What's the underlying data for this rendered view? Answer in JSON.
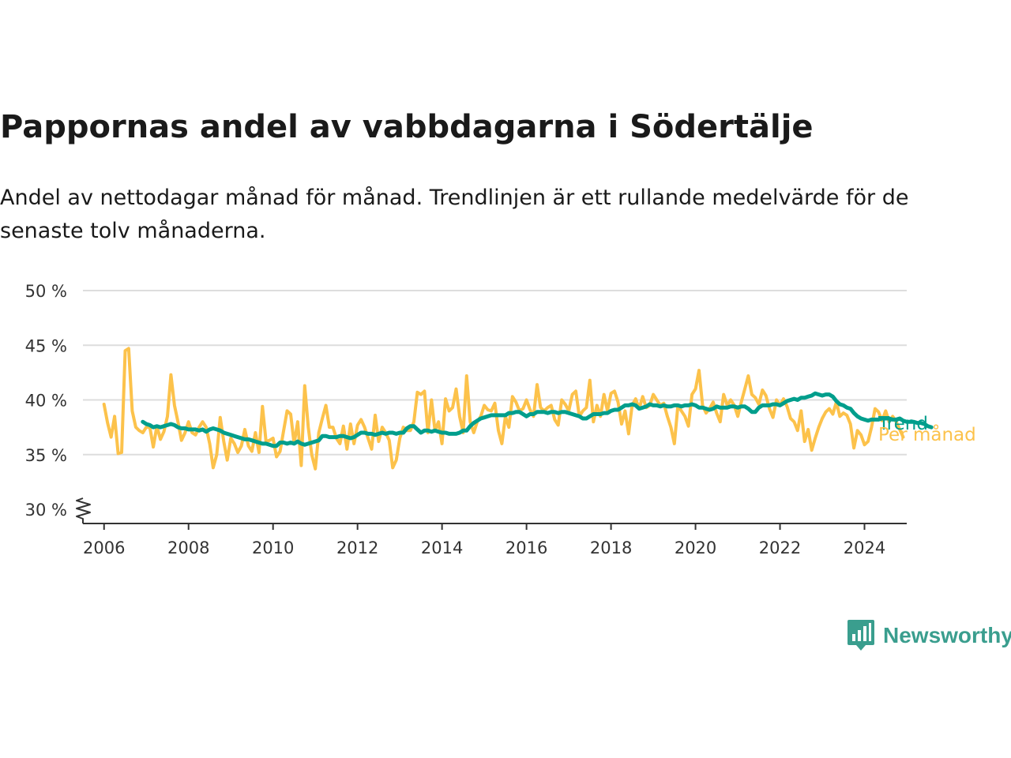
{
  "title": "Pappornas andel av vabbdagarna i Södertälje",
  "subtitle": "Andel av nettodagar månad för månad. Trendlinjen är ett rullande medelvärde för de senaste tolv månaderna.",
  "brand": {
    "name": "Newsworthy",
    "color": "#3a9e8e",
    "icon": "newsworthy-logo-icon"
  },
  "colors": {
    "trend": "#009e8c",
    "monthly": "#fcc24b",
    "grid": "#dddddd",
    "axis": "#333333"
  },
  "chart_data": {
    "type": "line",
    "title": "Pappornas andel av vabbdagarna i Södertälje",
    "xlabel": "",
    "ylabel": "",
    "ylim": [
      30,
      50
    ],
    "xlim": [
      "2005-06",
      "2025-01"
    ],
    "axis_break": true,
    "y_ticks": [
      {
        "value": 30,
        "label": "30 %"
      },
      {
        "value": 35,
        "label": "35 %"
      },
      {
        "value": 40,
        "label": "40 %"
      },
      {
        "value": 45,
        "label": "45 %"
      },
      {
        "value": 50,
        "label": "50 %"
      }
    ],
    "x_ticks": [
      {
        "value": 2006,
        "label": "2006"
      },
      {
        "value": 2008,
        "label": "2008"
      },
      {
        "value": 2010,
        "label": "2010"
      },
      {
        "value": 2012,
        "label": "2012"
      },
      {
        "value": 2014,
        "label": "2014"
      },
      {
        "value": 2016,
        "label": "2016"
      },
      {
        "value": 2018,
        "label": "2018"
      },
      {
        "value": 2020,
        "label": "2020"
      },
      {
        "value": 2022,
        "label": "2022"
      },
      {
        "value": 2024,
        "label": "2024"
      }
    ],
    "grid": "horizontal",
    "legend_placement": "end-of-line labels, right",
    "series": [
      {
        "name": "Per månad",
        "color": "#fcc24b",
        "start": "2006-01",
        "values": [
          39.6,
          37.9,
          36.6,
          38.5,
          35.1,
          35.2,
          44.5,
          44.7,
          39.0,
          37.5,
          37.2,
          37.0,
          37.5,
          37.5,
          35.7,
          37.6,
          36.4,
          37.1,
          38.5,
          42.3,
          39.5,
          38.0,
          36.3,
          37.0,
          38.0,
          37.0,
          36.8,
          37.5,
          38.0,
          37.5,
          36.0,
          33.8,
          35.0,
          38.4,
          36.2,
          34.5,
          36.5,
          36.0,
          35.2,
          35.8,
          37.3,
          35.8,
          35.3,
          37.0,
          35.2,
          39.4,
          36.2,
          36.3,
          36.5,
          34.8,
          35.3,
          37.2,
          39.0,
          38.7,
          36.0,
          38.0,
          34.0,
          41.3,
          37.5,
          35.0,
          33.7,
          37.0,
          38.3,
          39.5,
          37.5,
          37.5,
          36.5,
          36.0,
          37.6,
          35.5,
          37.8,
          36.0,
          37.7,
          38.2,
          37.5,
          36.5,
          35.5,
          38.6,
          36.2,
          37.5,
          37.0,
          36.3,
          33.8,
          34.5,
          36.5,
          37.5,
          37.2,
          37.2,
          38.0,
          40.7,
          40.5,
          40.8,
          37.0,
          40.0,
          37.2,
          38.0,
          36.0,
          40.1,
          39.0,
          39.3,
          41.0,
          38.5,
          37.0,
          42.2,
          38.0,
          37.0,
          38.0,
          38.5,
          39.5,
          39.1,
          39.0,
          39.7,
          37.2,
          36.0,
          38.5,
          37.5,
          40.3,
          39.8,
          39.0,
          39.2,
          40.0,
          39.1,
          38.5,
          41.4,
          39.3,
          39.0,
          39.3,
          39.5,
          38.2,
          37.7,
          40.0,
          39.6,
          39.0,
          40.5,
          40.8,
          38.5,
          39.0,
          39.3,
          41.8,
          38.0,
          39.5,
          38.5,
          40.5,
          39.0,
          40.6,
          40.8,
          39.8,
          37.8,
          39.0,
          36.9,
          39.5,
          40.1,
          39.2,
          40.3,
          39.3,
          39.5,
          40.5,
          40.0,
          39.5,
          39.7,
          38.5,
          37.5,
          36.0,
          39.5,
          39.0,
          38.5,
          37.6,
          40.5,
          41.0,
          42.7,
          39.5,
          38.8,
          39.2,
          39.8,
          38.8,
          38.0,
          40.5,
          39.5,
          40.0,
          39.5,
          38.5,
          39.8,
          41.0,
          42.2,
          40.5,
          40.2,
          39.6,
          40.9,
          40.4,
          39.2,
          38.4,
          40.0,
          39.5,
          40.1,
          39.4,
          38.3,
          38.0,
          37.2,
          39.0,
          36.2,
          37.3,
          35.4,
          36.5,
          37.5,
          38.3,
          38.9,
          39.2,
          38.7,
          39.8,
          38.5,
          38.8,
          38.6,
          37.8,
          35.6,
          37.2,
          36.8,
          35.9,
          36.2,
          37.5,
          39.2,
          38.9,
          38.1,
          39.0,
          38.0,
          38.5,
          38.0,
          37.3,
          36.6
        ]
      },
      {
        "name": "Trend",
        "color": "#009e8c",
        "start": "2006-12",
        "values": [
          38.0,
          37.8,
          37.7,
          37.5,
          37.6,
          37.5,
          37.6,
          37.7,
          37.8,
          37.7,
          37.5,
          37.4,
          37.4,
          37.3,
          37.3,
          37.3,
          37.2,
          37.3,
          37.1,
          37.3,
          37.4,
          37.3,
          37.2,
          37.0,
          36.9,
          36.8,
          36.7,
          36.6,
          36.5,
          36.4,
          36.4,
          36.3,
          36.2,
          36.1,
          36.0,
          36.0,
          35.9,
          35.8,
          35.8,
          36.1,
          36.1,
          36.0,
          36.1,
          36.0,
          36.2,
          36.0,
          35.9,
          36.0,
          36.1,
          36.2,
          36.3,
          36.7,
          36.7,
          36.6,
          36.6,
          36.6,
          36.7,
          36.7,
          36.6,
          36.5,
          36.6,
          36.8,
          37.0,
          37.0,
          36.9,
          36.9,
          36.8,
          36.9,
          37.0,
          36.9,
          37.0,
          37.0,
          36.9,
          37.0,
          37.0,
          37.4,
          37.6,
          37.6,
          37.3,
          37.0,
          37.2,
          37.2,
          37.1,
          37.2,
          37.1,
          37.0,
          37.0,
          36.9,
          36.9,
          36.9,
          37.0,
          37.2,
          37.2,
          37.6,
          37.9,
          38.1,
          38.3,
          38.4,
          38.5,
          38.6,
          38.6,
          38.6,
          38.6,
          38.6,
          38.8,
          38.8,
          38.9,
          38.9,
          38.7,
          38.5,
          38.7,
          38.7,
          38.9,
          38.9,
          38.9,
          38.8,
          38.9,
          38.9,
          38.8,
          38.9,
          38.9,
          38.8,
          38.7,
          38.6,
          38.5,
          38.3,
          38.3,
          38.5,
          38.7,
          38.7,
          38.7,
          38.8,
          38.8,
          39.0,
          39.1,
          39.1,
          39.3,
          39.5,
          39.5,
          39.6,
          39.5,
          39.2,
          39.3,
          39.4,
          39.6,
          39.5,
          39.5,
          39.4,
          39.5,
          39.4,
          39.4,
          39.5,
          39.5,
          39.4,
          39.5,
          39.5,
          39.6,
          39.5,
          39.3,
          39.3,
          39.2,
          39.1,
          39.2,
          39.4,
          39.3,
          39.3,
          39.3,
          39.4,
          39.4,
          39.3,
          39.4,
          39.4,
          39.2,
          38.9,
          38.9,
          39.3,
          39.5,
          39.5,
          39.5,
          39.6,
          39.6,
          39.5,
          39.7,
          39.9,
          40.0,
          40.1,
          40.0,
          40.2,
          40.2,
          40.3,
          40.4,
          40.6,
          40.5,
          40.4,
          40.5,
          40.5,
          40.3,
          39.9,
          39.6,
          39.5,
          39.3,
          39.2,
          38.8,
          38.5,
          38.3,
          38.2,
          38.1,
          38.2,
          38.2,
          38.2,
          38.3,
          38.3,
          38.3,
          38.2,
          38.2,
          38.3,
          38.1,
          38.0,
          38.0,
          38.0,
          37.9,
          37.9,
          37.8,
          37.6,
          37.5
        ]
      }
    ]
  }
}
